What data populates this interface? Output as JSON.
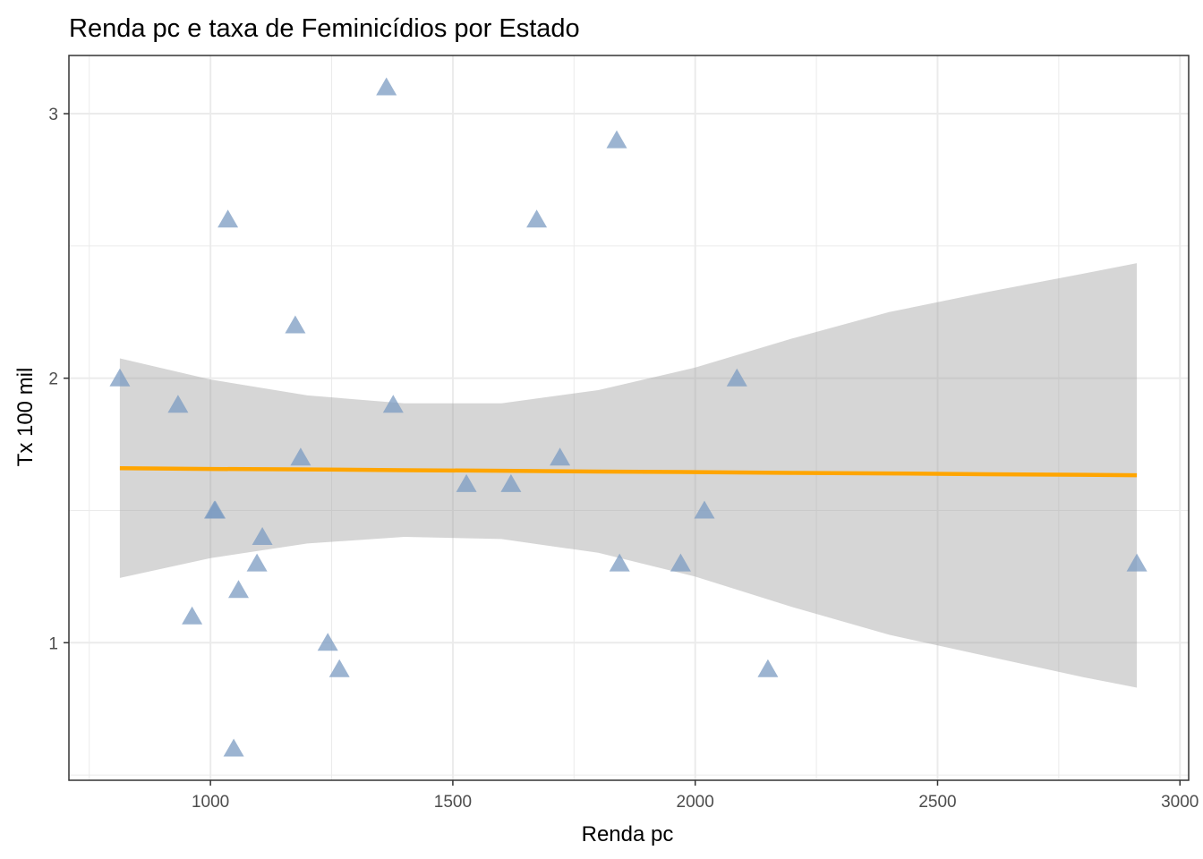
{
  "chart_data": {
    "type": "scatter",
    "title": "Renda pc e taxa de Feminicídios por Estado",
    "xlabel": "Renda pc",
    "ylabel": "Tx 100 mil",
    "xlim": [
      708,
      3018
    ],
    "ylim": [
      0.48,
      3.22
    ],
    "x_ticks": [
      1000,
      1500,
      2000,
      2500,
      3000
    ],
    "x_tick_labels": [
      "1000",
      "1500",
      "2000",
      "2500",
      "3000"
    ],
    "y_ticks": [
      1,
      2,
      3
    ],
    "y_tick_labels": [
      "1",
      "2",
      "3"
    ],
    "x_minor_ticks": [
      750,
      1250,
      1750,
      2250,
      2750
    ],
    "y_minor_ticks": [
      0.5,
      1.5,
      2.5
    ],
    "grid": true,
    "points": [
      {
        "x": 813,
        "y": 2.0
      },
      {
        "x": 933,
        "y": 1.9
      },
      {
        "x": 962,
        "y": 1.1
      },
      {
        "x": 1008,
        "y": 1.5
      },
      {
        "x": 1010,
        "y": 1.5
      },
      {
        "x": 1036,
        "y": 2.6
      },
      {
        "x": 1048,
        "y": 0.6
      },
      {
        "x": 1058,
        "y": 1.2
      },
      {
        "x": 1096,
        "y": 1.3
      },
      {
        "x": 1107,
        "y": 1.4
      },
      {
        "x": 1175,
        "y": 2.2
      },
      {
        "x": 1186,
        "y": 1.7
      },
      {
        "x": 1242,
        "y": 1.0
      },
      {
        "x": 1266,
        "y": 0.9
      },
      {
        "x": 1363,
        "y": 3.1
      },
      {
        "x": 1377,
        "y": 1.9
      },
      {
        "x": 1528,
        "y": 1.6
      },
      {
        "x": 1620,
        "y": 1.6
      },
      {
        "x": 1673,
        "y": 2.6
      },
      {
        "x": 1721,
        "y": 1.7
      },
      {
        "x": 1838,
        "y": 2.9
      },
      {
        "x": 1844,
        "y": 1.3
      },
      {
        "x": 1970,
        "y": 1.3
      },
      {
        "x": 2019,
        "y": 1.5
      },
      {
        "x": 2086,
        "y": 2.0
      },
      {
        "x": 2150,
        "y": 0.9
      },
      {
        "x": 2911,
        "y": 1.3
      }
    ],
    "trend": {
      "x": [
        813,
        1000,
        1200,
        1400,
        1600,
        1800,
        2000,
        2200,
        2400,
        2600,
        2800,
        2911
      ],
      "fit": [
        1.66,
        1.657,
        1.655,
        1.652,
        1.65,
        1.647,
        1.645,
        1.642,
        1.64,
        1.637,
        1.635,
        1.633
      ],
      "lower": [
        1.245,
        1.32,
        1.375,
        1.4,
        1.392,
        1.34,
        1.25,
        1.135,
        1.03,
        0.95,
        0.87,
        0.83
      ],
      "upper": [
        2.075,
        1.995,
        1.935,
        1.905,
        1.905,
        1.955,
        2.04,
        2.15,
        2.25,
        2.325,
        2.395,
        2.435
      ]
    },
    "colors": {
      "points": "#7b9bc2",
      "trend_line": "#ffa500",
      "ribbon": "#999999",
      "grid": "#ebebeb",
      "border": "#333333",
      "tick_label": "#4d4d4d"
    }
  }
}
